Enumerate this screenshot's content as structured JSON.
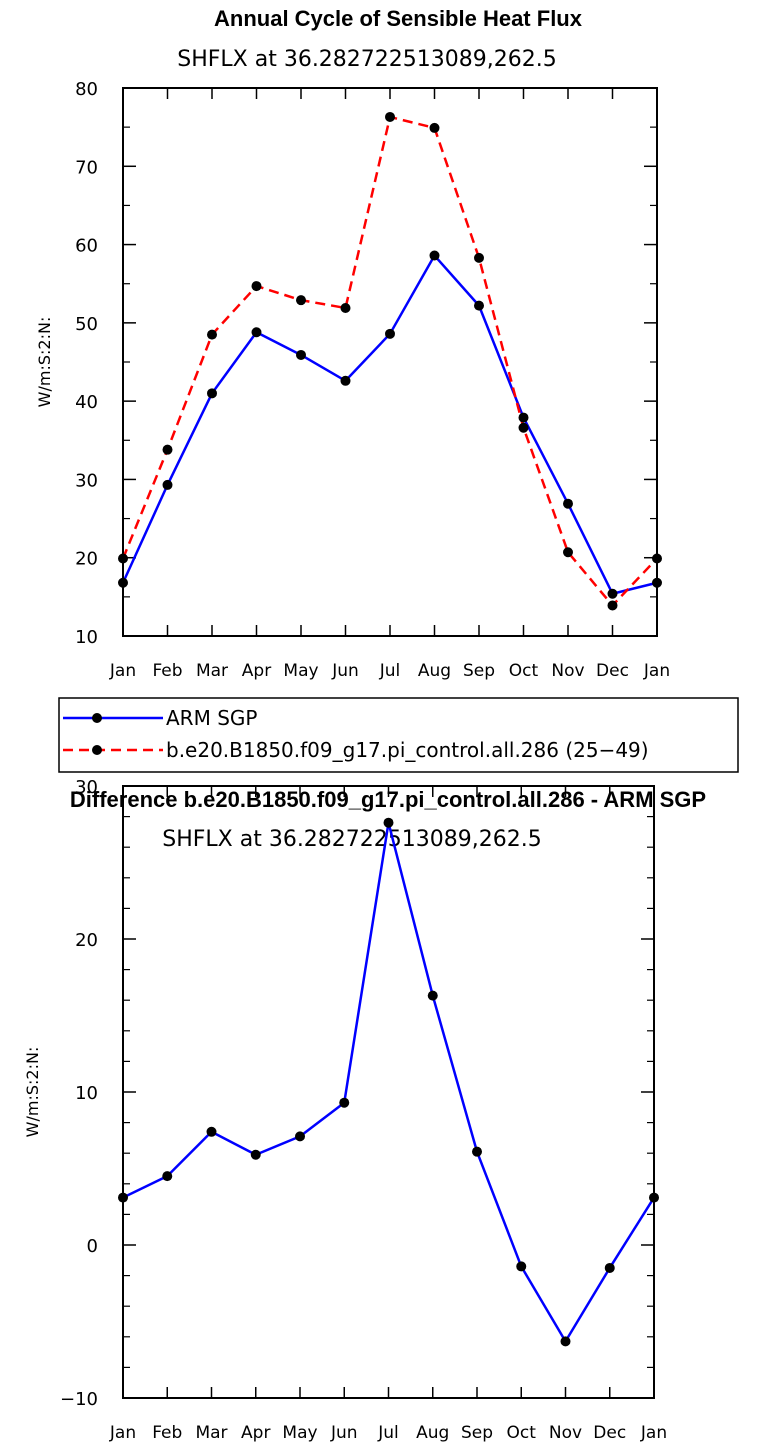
{
  "chart_data": [
    {
      "type": "line",
      "title": "Annual Cycle of Sensible Heat Flux",
      "subtitle": "SHFLX at 36.282722513089,262.5",
      "ylabel": "W/m:S:2:N:",
      "xlabel": "",
      "categories": [
        "Jan",
        "Feb",
        "Mar",
        "Apr",
        "May",
        "Jun",
        "Jul",
        "Aug",
        "Sep",
        "Oct",
        "Nov",
        "Dec",
        "Jan"
      ],
      "ylim": [
        10,
        80
      ],
      "yticks": [
        10,
        20,
        30,
        40,
        50,
        60,
        70,
        80
      ],
      "grid": false,
      "legend_position": "below",
      "series": [
        {
          "name": "ARM SGP",
          "color": "#0000ff",
          "dash": "solid",
          "values": [
            16.8,
            29.3,
            41.0,
            48.8,
            45.9,
            42.6,
            48.6,
            58.6,
            52.2,
            37.9,
            26.9,
            15.4,
            16.8
          ]
        },
        {
          "name": "b.e20.B1850.f09_g17.pi_control.all.286 (25−49)",
          "color": "#ff0000",
          "dash": "dashed",
          "values": [
            19.9,
            33.8,
            48.5,
            54.7,
            52.9,
            51.9,
            76.3,
            74.9,
            58.3,
            36.6,
            20.7,
            13.9,
            19.9
          ]
        }
      ]
    },
    {
      "type": "line",
      "title": "Difference b.e20.B1850.f09_g17.pi_control.all.286 - ARM SGP",
      "subtitle": "SHFLX at 36.282722513089,262.5",
      "ylabel": "W/m:S:2:N:",
      "xlabel": "",
      "categories": [
        "Jan",
        "Feb",
        "Mar",
        "Apr",
        "May",
        "Jun",
        "Jul",
        "Aug",
        "Sep",
        "Oct",
        "Nov",
        "Dec",
        "Jan"
      ],
      "ylim": [
        -10,
        30
      ],
      "yticks": [
        -10,
        0,
        10,
        20,
        30
      ],
      "ytick_labels": [
        "−10",
        "0",
        "10",
        "20",
        "30"
      ],
      "grid": false,
      "series": [
        {
          "color": "#0000ff",
          "dash": "solid",
          "values": [
            3.1,
            4.5,
            7.4,
            5.9,
            7.1,
            9.3,
            27.6,
            16.3,
            6.1,
            -1.4,
            -6.3,
            -1.5,
            3.1
          ]
        }
      ]
    }
  ]
}
